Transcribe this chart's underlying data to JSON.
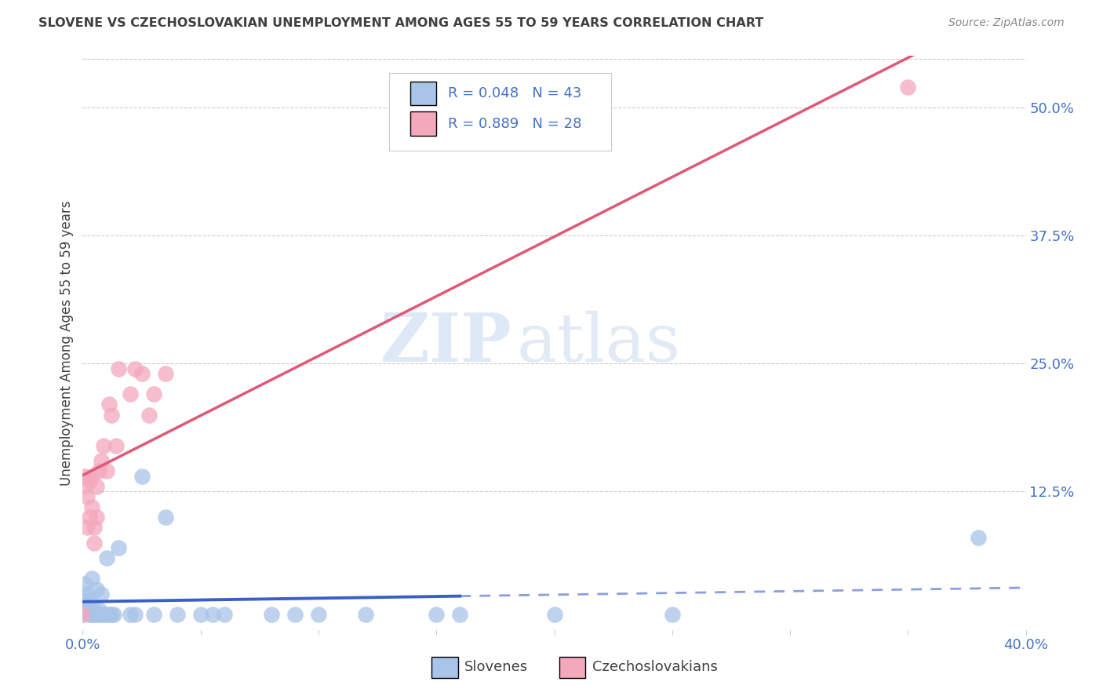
{
  "title": "SLOVENE VS CZECHOSLOVAKIAN UNEMPLOYMENT AMONG AGES 55 TO 59 YEARS CORRELATION CHART",
  "source": "Source: ZipAtlas.com",
  "ylabel": "Unemployment Among Ages 55 to 59 years",
  "xlim": [
    0.0,
    0.4
  ],
  "ylim": [
    -0.01,
    0.55
  ],
  "yticks_right": [
    0.125,
    0.25,
    0.375,
    0.5
  ],
  "ytick_right_labels": [
    "12.5%",
    "25.0%",
    "37.5%",
    "50.0%"
  ],
  "slovenes_color": "#a8c4e8",
  "czechoslovakians_color": "#f4a8bc",
  "slovenes_line_color": "#3a5fc8",
  "czechoslovakians_line_color": "#e05878",
  "slovenes_x": [
    0.0,
    0.0,
    0.001,
    0.001,
    0.002,
    0.002,
    0.003,
    0.003,
    0.004,
    0.004,
    0.005,
    0.005,
    0.006,
    0.006,
    0.007,
    0.007,
    0.008,
    0.008,
    0.009,
    0.01,
    0.01,
    0.011,
    0.012,
    0.013,
    0.015,
    0.02,
    0.022,
    0.025,
    0.03,
    0.035,
    0.04,
    0.05,
    0.055,
    0.06,
    0.08,
    0.09,
    0.1,
    0.12,
    0.15,
    0.16,
    0.2,
    0.25,
    0.38
  ],
  "slovenes_y": [
    0.02,
    0.005,
    0.015,
    0.035,
    0.01,
    0.025,
    0.005,
    0.02,
    0.005,
    0.04,
    0.005,
    0.01,
    0.005,
    0.03,
    0.005,
    0.01,
    0.005,
    0.025,
    0.005,
    0.005,
    0.06,
    0.005,
    0.005,
    0.005,
    0.07,
    0.005,
    0.005,
    0.14,
    0.005,
    0.1,
    0.005,
    0.005,
    0.005,
    0.005,
    0.005,
    0.005,
    0.005,
    0.005,
    0.005,
    0.005,
    0.005,
    0.005,
    0.08
  ],
  "czech_x": [
    0.0,
    0.001,
    0.001,
    0.002,
    0.002,
    0.003,
    0.003,
    0.004,
    0.004,
    0.005,
    0.005,
    0.006,
    0.006,
    0.007,
    0.008,
    0.009,
    0.01,
    0.011,
    0.012,
    0.014,
    0.015,
    0.02,
    0.022,
    0.025,
    0.028,
    0.03,
    0.035,
    0.35
  ],
  "czech_y": [
    0.005,
    0.13,
    0.14,
    0.12,
    0.09,
    0.135,
    0.1,
    0.11,
    0.14,
    0.075,
    0.09,
    0.1,
    0.13,
    0.145,
    0.155,
    0.17,
    0.145,
    0.21,
    0.2,
    0.17,
    0.245,
    0.22,
    0.245,
    0.24,
    0.2,
    0.22,
    0.24,
    0.52
  ],
  "watermark_zip": "ZIP",
  "watermark_atlas": "atlas",
  "background_color": "#ffffff",
  "grid_color": "#cccccc",
  "label_color": "#4472c4",
  "text_color": "#404040"
}
